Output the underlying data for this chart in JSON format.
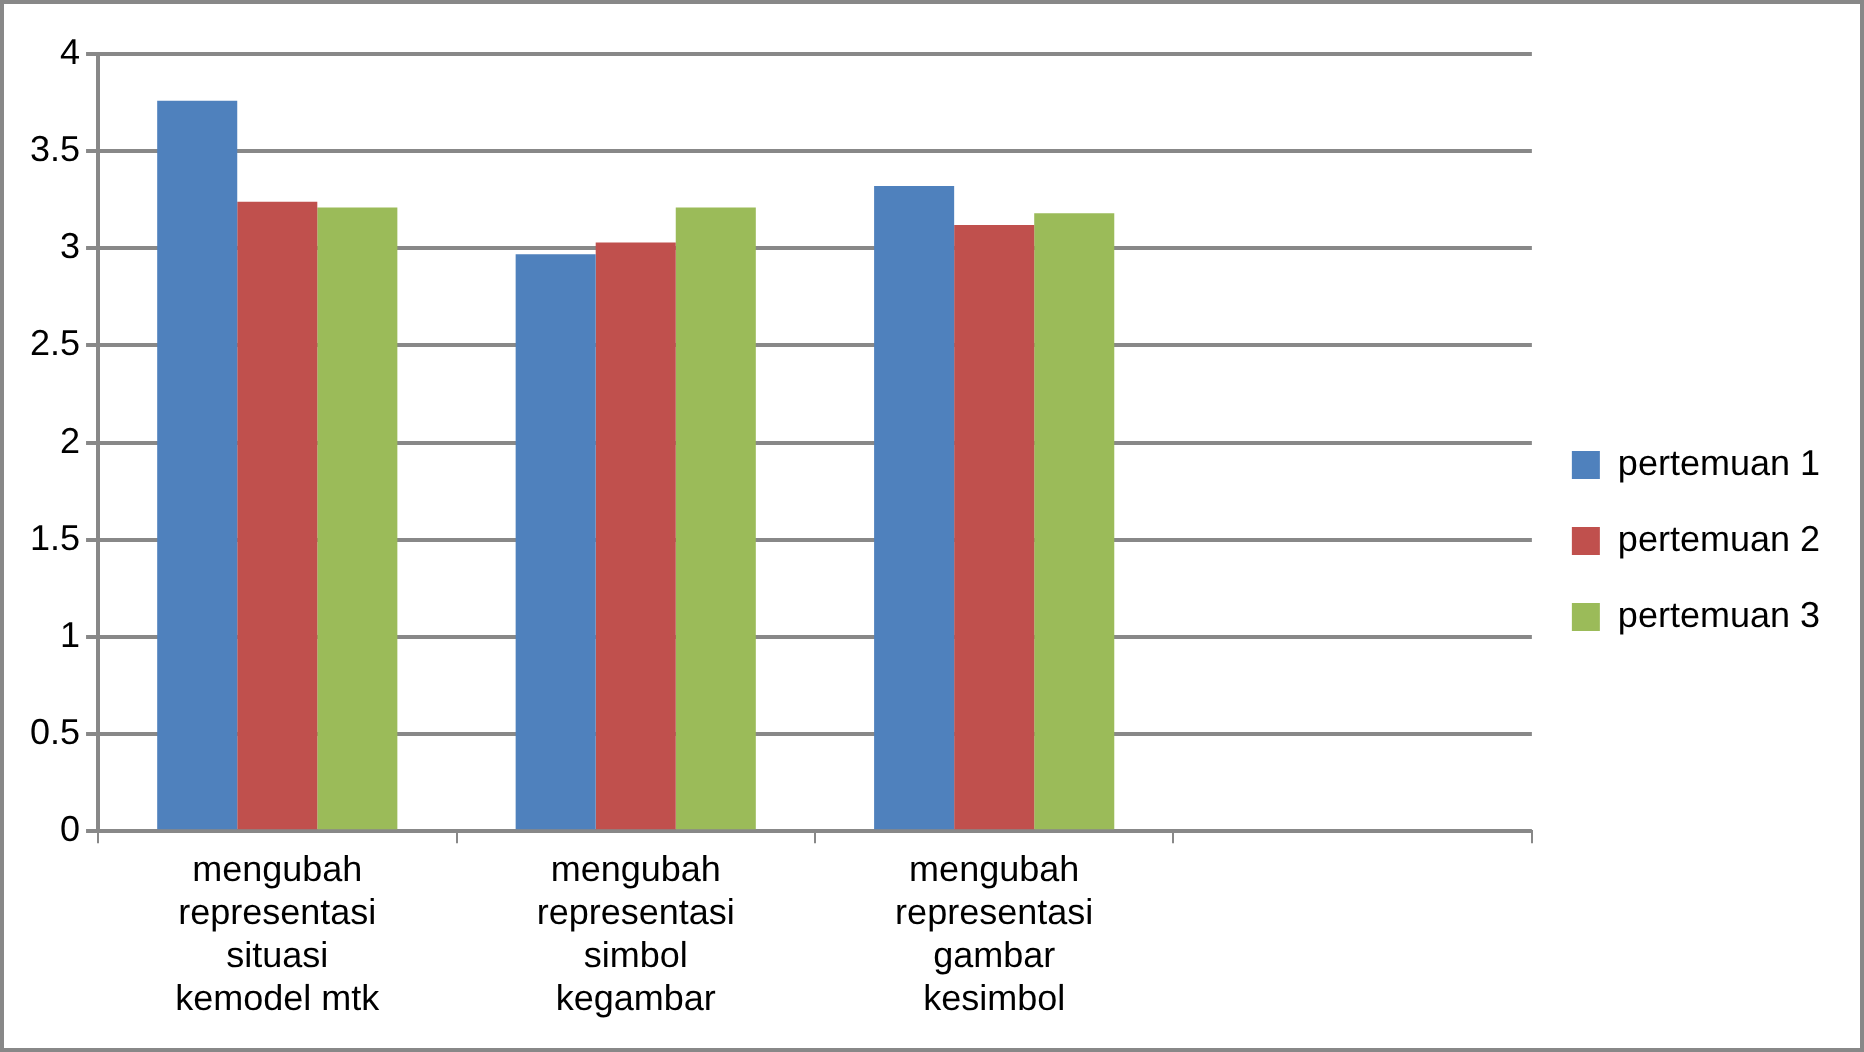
{
  "chart_data": {
    "type": "bar",
    "categories": [
      "mengubah\nrepresentasi\nsituasi\nkemodel mtk",
      "mengubah\nrepresentasi\nsimbol\nkegambar",
      "mengubah\nrepresentasi\ngambar\nkesimbol",
      null
    ],
    "series": [
      {
        "name": "pertemuan 1",
        "color": "#4f81bd",
        "values": [
          3.76,
          2.97,
          3.32,
          null
        ]
      },
      {
        "name": "pertemuan 2",
        "color": "#c0504d",
        "values": [
          3.24,
          3.03,
          3.12,
          null
        ]
      },
      {
        "name": "pertemuan 3",
        "color": "#9bbb59",
        "values": [
          3.21,
          3.21,
          3.18,
          null
        ]
      }
    ],
    "ylim": [
      0,
      4
    ],
    "yticks": [
      0,
      0.5,
      1,
      1.5,
      2,
      2.5,
      3,
      3.5,
      4
    ],
    "grid": "y",
    "legend": "right"
  }
}
